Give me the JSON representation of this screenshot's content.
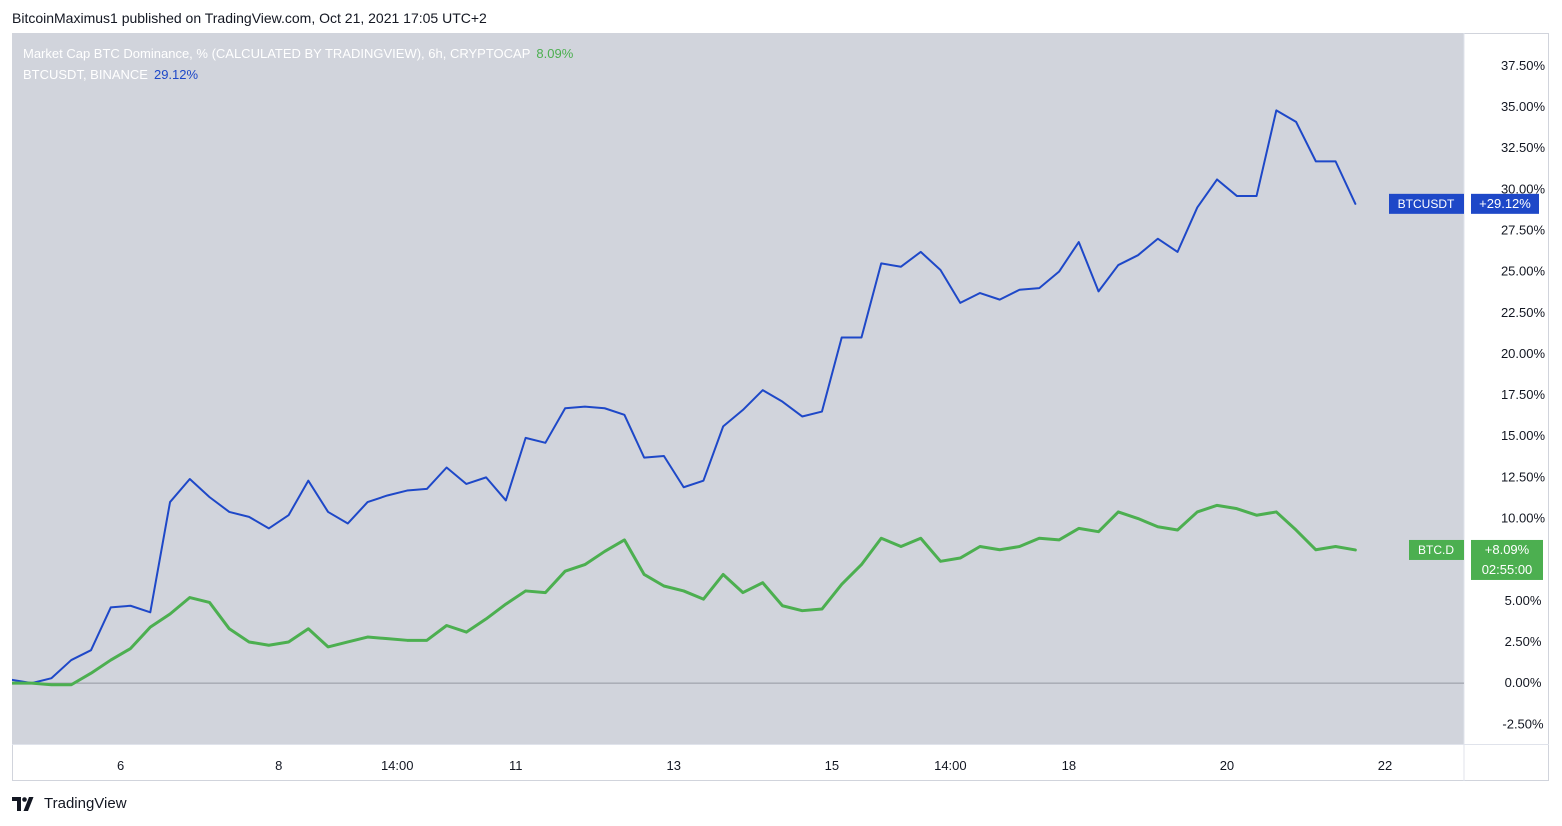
{
  "header": {
    "published": "BitcoinMaximus1 published on TradingView.com, Oct 21, 2021 17:05 UTC+2"
  },
  "legend": {
    "btcd": {
      "name": "Market Cap BTC Dominance, % (CALCULATED BY TRADINGVIEW), 6h, CRYPTOCAP",
      "value": "8.09%"
    },
    "btcusdt": {
      "name": "BTCUSDT, BINANCE",
      "value": "29.12%"
    }
  },
  "footer": {
    "brand": "TradingView"
  },
  "colors": {
    "plot_bg": "#d1d4dc",
    "btcusdt": "#1e48c8",
    "btcd": "#4caf50",
    "axis_text": "#131722",
    "zero_line": "#9598a1"
  },
  "chart_data": {
    "type": "line",
    "ylim": [
      -3.7,
      39.5
    ],
    "y_unit": "%",
    "y_ticks": [
      "37.50%",
      "35.00%",
      "32.50%",
      "30.00%",
      "27.50%",
      "25.00%",
      "22.50%",
      "20.00%",
      "17.50%",
      "15.00%",
      "12.50%",
      "10.00%",
      "5.00%",
      "2.50%",
      "0.00%",
      "-2.50%"
    ],
    "y_tick_values": [
      37.5,
      35.0,
      32.5,
      30.0,
      27.5,
      25.0,
      22.5,
      20.0,
      17.5,
      15.0,
      12.5,
      10.0,
      5.0,
      2.5,
      0.0,
      -2.5
    ],
    "x_ticks": [
      {
        "label": "6",
        "x": 5.5
      },
      {
        "label": "8",
        "x": 13.5
      },
      {
        "label": "14:00",
        "x": 19.5
      },
      {
        "label": "11",
        "x": 25.5
      },
      {
        "label": "13",
        "x": 33.5
      },
      {
        "label": "15",
        "x": 41.5
      },
      {
        "label": "14:00",
        "x": 47.5
      },
      {
        "label": "18",
        "x": 53.5
      },
      {
        "label": "20",
        "x": 61.5
      },
      {
        "label": "22",
        "x": 69.5
      }
    ],
    "xlim": [
      0,
      73.5
    ],
    "series": [
      {
        "name": "BTCUSDT",
        "values": [
          0.2,
          0.0,
          0.3,
          1.4,
          2.0,
          4.6,
          4.7,
          4.3,
          11.0,
          12.4,
          11.3,
          10.4,
          10.1,
          9.4,
          10.2,
          12.3,
          10.4,
          9.7,
          11.0,
          11.4,
          11.7,
          11.8,
          13.1,
          12.1,
          12.5,
          11.1,
          14.9,
          14.6,
          16.7,
          16.8,
          16.7,
          16.3,
          13.7,
          13.8,
          11.9,
          12.3,
          15.6,
          16.6,
          17.8,
          17.1,
          16.2,
          16.5,
          21.0,
          21.0,
          25.5,
          25.3,
          26.2,
          25.1,
          23.1,
          23.7,
          23.3,
          23.9,
          24.0,
          25.0,
          26.8,
          23.8,
          25.4,
          26.0,
          27.0,
          26.2,
          28.9,
          30.6,
          29.6,
          29.6,
          34.8,
          34.1,
          31.7,
          31.7,
          29.12
        ]
      },
      {
        "name": "BTC.D",
        "values": [
          0.0,
          0.0,
          -0.1,
          -0.1,
          0.6,
          1.4,
          2.1,
          3.4,
          4.2,
          5.2,
          4.9,
          3.3,
          2.5,
          2.3,
          2.5,
          3.3,
          2.2,
          2.5,
          2.8,
          2.7,
          2.6,
          2.6,
          3.5,
          3.1,
          3.9,
          4.8,
          5.6,
          5.5,
          6.8,
          7.2,
          8.0,
          8.7,
          6.6,
          5.9,
          5.6,
          5.1,
          6.6,
          5.5,
          6.1,
          4.7,
          4.4,
          4.5,
          6.0,
          7.2,
          8.8,
          8.3,
          8.8,
          7.4,
          7.6,
          8.3,
          8.1,
          8.3,
          8.8,
          8.7,
          9.4,
          9.2,
          10.4,
          10.0,
          9.5,
          9.3,
          10.4,
          10.8,
          10.6,
          10.2,
          10.4,
          9.3,
          8.1,
          8.3,
          8.09
        ]
      }
    ],
    "labels": {
      "btcusdt": {
        "name": "BTCUSDT",
        "value": "+29.12%"
      },
      "btcd": {
        "name": "BTC.D",
        "value": "+8.09%",
        "countdown": "02:55:00"
      }
    },
    "zero_line": 0.0,
    "grid": false
  }
}
